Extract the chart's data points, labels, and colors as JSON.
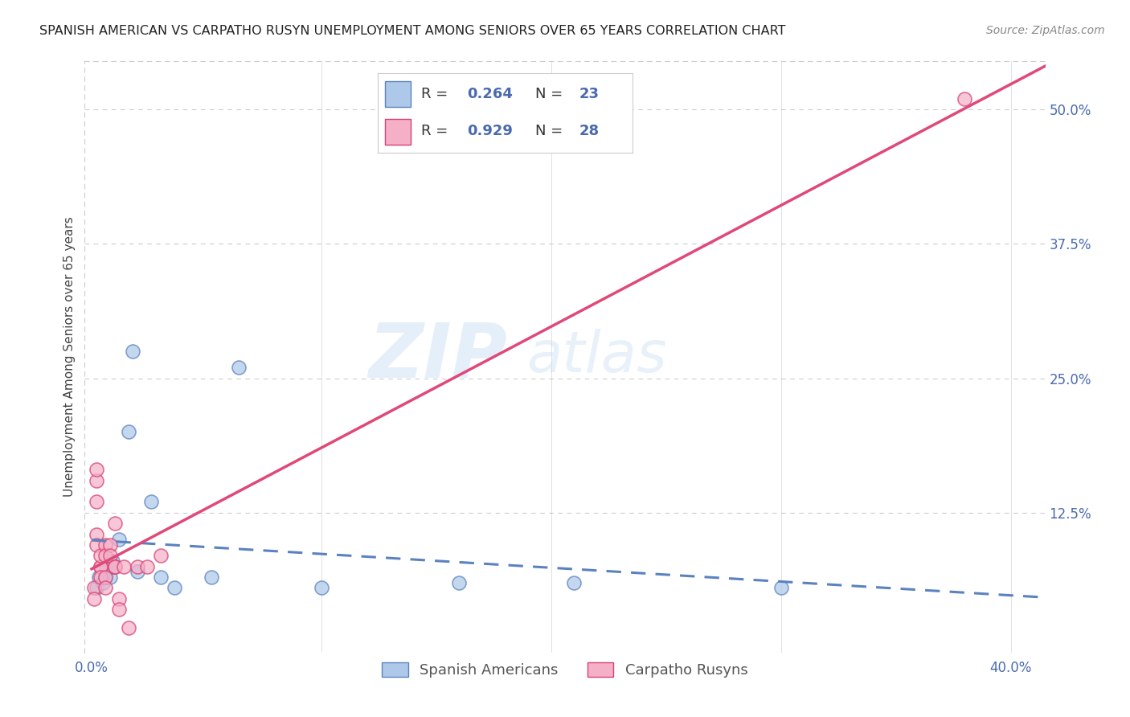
{
  "title": "SPANISH AMERICAN VS CARPATHO RUSYN UNEMPLOYMENT AMONG SENIORS OVER 65 YEARS CORRELATION CHART",
  "source": "Source: ZipAtlas.com",
  "ylabel": "Unemployment Among Seniors over 65 years",
  "xlim": [
    -0.003,
    0.415
  ],
  "ylim": [
    -0.005,
    0.545
  ],
  "xticks": [
    0.0,
    0.1,
    0.2,
    0.3,
    0.4
  ],
  "xticklabels": [
    "0.0%",
    "",
    "",
    "",
    "40.0%"
  ],
  "yticks_right": [
    0.125,
    0.25,
    0.375,
    0.5
  ],
  "ytick_right_labels": [
    "12.5%",
    "25.0%",
    "37.5%",
    "50.0%"
  ],
  "background_color": "#ffffff",
  "grid_color": "#cccccc",
  "watermark_zip": "ZIP",
  "watermark_atlas": "atlas",
  "r1": "0.264",
  "n1": "23",
  "r2": "0.929",
  "n2": "28",
  "spanish_fill": "#adc8e8",
  "spanish_edge": "#5b82c0",
  "carpatho_fill": "#f5b0c8",
  "carpatho_edge": "#d94070",
  "spanish_line_color": "#5b82c0",
  "carpatho_line_color": "#e04878",
  "label_color": "#4a6ab0",
  "sp_x": [
    0.002,
    0.003,
    0.005,
    0.006,
    0.006,
    0.008,
    0.008,
    0.009,
    0.009,
    0.009,
    0.012,
    0.016,
    0.018,
    0.02,
    0.026,
    0.03,
    0.036,
    0.052,
    0.064,
    0.1,
    0.16,
    0.21,
    0.3
  ],
  "sp_y": [
    0.055,
    0.065,
    0.06,
    0.07,
    0.065,
    0.08,
    0.065,
    0.08,
    0.075,
    0.075,
    0.1,
    0.2,
    0.275,
    0.07,
    0.135,
    0.065,
    0.055,
    0.065,
    0.26,
    0.055,
    0.06,
    0.06,
    0.055
  ],
  "ca_x": [
    0.001,
    0.001,
    0.002,
    0.002,
    0.002,
    0.002,
    0.002,
    0.004,
    0.004,
    0.004,
    0.004,
    0.006,
    0.006,
    0.006,
    0.006,
    0.008,
    0.008,
    0.01,
    0.01,
    0.01,
    0.012,
    0.012,
    0.014,
    0.016,
    0.02,
    0.024,
    0.03,
    0.38
  ],
  "ca_y": [
    0.055,
    0.045,
    0.135,
    0.155,
    0.165,
    0.105,
    0.095,
    0.075,
    0.075,
    0.085,
    0.065,
    0.065,
    0.055,
    0.095,
    0.085,
    0.095,
    0.085,
    0.075,
    0.075,
    0.115,
    0.045,
    0.035,
    0.075,
    0.018,
    0.075,
    0.075,
    0.085,
    0.51
  ]
}
